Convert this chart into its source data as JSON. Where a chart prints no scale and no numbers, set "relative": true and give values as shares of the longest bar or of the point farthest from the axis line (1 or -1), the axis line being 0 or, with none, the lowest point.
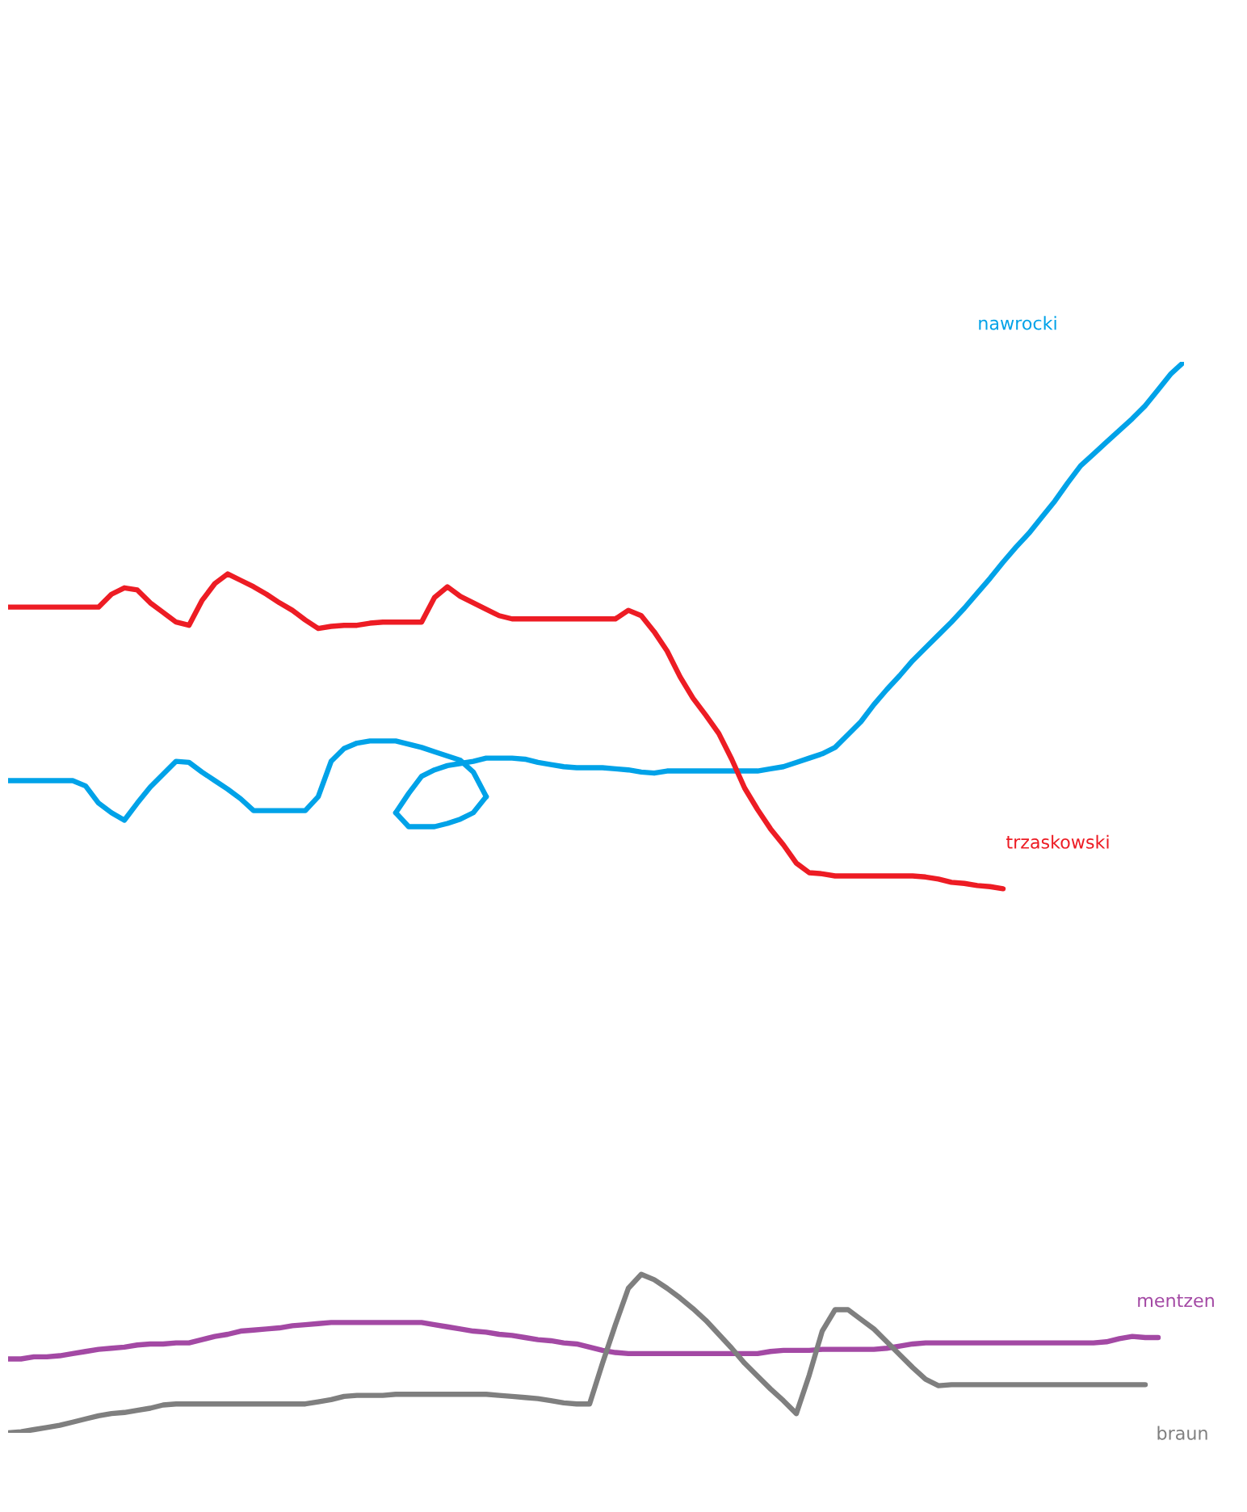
{
  "chart_data": {
    "type": "line",
    "relative": true,
    "categories": [
      null,
      null,
      null,
      null,
      null,
      null,
      null,
      null,
      null,
      null,
      null,
      null,
      null,
      null,
      null,
      null,
      null,
      null,
      null,
      null,
      null,
      null,
      null,
      null,
      null,
      null,
      null,
      null,
      null,
      null,
      null,
      null,
      null,
      null,
      null,
      null,
      null,
      null,
      null,
      null,
      null,
      null,
      null,
      null,
      null,
      null,
      null,
      null,
      null,
      null,
      null,
      null,
      null,
      null,
      null,
      null,
      null,
      null,
      null,
      null,
      null,
      null,
      null,
      null,
      null,
      null,
      null,
      null,
      null,
      null,
      null,
      null,
      null,
      null,
      null,
      null,
      null,
      null,
      null,
      null,
      null,
      null,
      null,
      null,
      null,
      null,
      null,
      null,
      null,
      null,
      null,
      null
    ],
    "series": [
      {
        "color": "#00a2e8",
        "values": [
          0.609,
          0.609,
          0.609,
          0.609,
          0.609,
          0.609,
          0.604,
          0.588,
          0.579,
          0.572,
          0.588,
          0.603,
          0.615,
          0.627,
          0.626,
          0.617,
          0.609,
          0.601,
          0.592,
          0.581,
          0.581,
          0.581,
          0.581,
          0.581,
          0.594,
          0.627,
          0.639,
          0.644,
          0.646,
          0.646,
          0.646,
          0.643,
          0.64,
          0.636,
          0.632,
          0.628,
          0.617,
          0.594,
          null,
          null,
          null,
          null,
          null,
          null,
          null,
          null,
          null,
          null,
          null,
          null,
          null,
          null,
          null,
          null,
          null,
          null,
          null,
          null,
          null,
          null,
          null,
          null,
          null,
          null,
          null,
          null,
          null,
          null,
          null,
          null,
          null,
          null,
          null,
          null,
          null,
          null,
          null,
          null,
          null,
          null,
          null,
          null,
          null,
          null,
          null,
          null,
          null,
          null,
          null,
          null,
          null,
          null
        ]
      },
      {
        "color": "#00a2e8",
        "values": [
          null,
          null,
          null,
          null,
          null,
          null,
          null,
          null,
          null,
          null,
          null,
          null,
          null,
          null,
          null,
          null,
          null,
          null,
          null,
          null,
          null,
          null,
          null,
          null,
          null,
          null,
          null,
          null,
          null,
          null,
          0.579,
          0.566,
          0.566,
          0.566,
          0.569,
          0.573,
          0.579,
          0.594,
          null,
          null,
          null,
          null,
          null,
          null,
          null,
          null,
          null,
          null,
          null,
          null,
          null,
          null,
          null,
          null,
          null,
          null,
          null,
          null,
          null,
          null,
          null,
          null,
          null,
          null,
          null,
          null,
          null,
          null,
          null,
          null,
          null,
          null,
          null,
          null,
          null,
          null,
          null,
          null,
          null,
          null,
          null,
          null,
          null,
          null,
          null,
          null,
          null,
          null,
          null,
          null,
          null,
          null
        ]
      },
      {
        "name": "nawrocki",
        "color": "#00a2e8",
        "values": [
          null,
          null,
          null,
          null,
          null,
          null,
          null,
          null,
          null,
          null,
          null,
          null,
          null,
          null,
          null,
          null,
          null,
          null,
          null,
          null,
          null,
          null,
          null,
          null,
          null,
          null,
          null,
          null,
          null,
          null,
          0.579,
          0.597,
          0.613,
          0.619,
          0.623,
          0.625,
          0.627,
          0.63,
          0.63,
          0.63,
          0.629,
          0.626,
          0.624,
          0.622,
          0.621,
          0.621,
          0.621,
          0.62,
          0.619,
          0.617,
          0.616,
          0.618,
          0.618,
          0.618,
          0.618,
          0.618,
          0.618,
          0.618,
          0.618,
          0.62,
          0.622,
          0.626,
          0.63,
          0.634,
          0.64,
          0.652,
          0.664,
          0.68,
          0.694,
          0.707,
          0.721,
          0.733,
          0.745,
          0.757,
          0.77,
          0.784,
          0.798,
          0.813,
          0.827,
          0.84,
          0.855,
          0.87,
          0.887,
          0.903,
          0.914,
          0.925,
          0.936,
          0.947,
          0.959,
          0.974,
          0.989,
          1.0
        ]
      },
      {
        "name": "trzaskowski",
        "color": "#ed1c24",
        "values": [
          0.771,
          0.771,
          0.771,
          0.771,
          0.771,
          0.771,
          0.771,
          0.771,
          0.783,
          0.789,
          0.787,
          0.775,
          0.766,
          0.757,
          0.754,
          0.777,
          0.793,
          0.802,
          0.796,
          0.79,
          0.783,
          0.775,
          0.768,
          0.759,
          0.751,
          0.753,
          0.754,
          0.754,
          0.756,
          0.757,
          0.757,
          0.757,
          0.757,
          0.78,
          0.79,
          0.781,
          0.775,
          0.769,
          0.763,
          0.76,
          0.76,
          0.76,
          0.76,
          0.76,
          0.76,
          0.76,
          0.76,
          0.76,
          0.768,
          0.763,
          0.748,
          0.73,
          0.706,
          0.686,
          0.67,
          0.653,
          0.629,
          0.602,
          0.582,
          0.564,
          0.549,
          0.532,
          0.523,
          0.522,
          0.52,
          0.52,
          0.52,
          0.52,
          0.52,
          0.52,
          0.52,
          0.519,
          0.517,
          0.514,
          0.513,
          0.511,
          0.51,
          0.508,
          null,
          null,
          null,
          null,
          null,
          null,
          null,
          null,
          null,
          null,
          null,
          null,
          null,
          null
        ]
      },
      {
        "name": "mentzen",
        "color": "#a349a4",
        "values": [
          0.069,
          0.069,
          0.071,
          0.071,
          0.072,
          0.074,
          0.076,
          0.078,
          0.079,
          0.08,
          0.082,
          0.083,
          0.083,
          0.084,
          0.084,
          0.087,
          0.09,
          0.092,
          0.095,
          0.096,
          0.097,
          0.098,
          0.1,
          0.101,
          0.102,
          0.103,
          0.103,
          0.103,
          0.103,
          0.103,
          0.103,
          0.103,
          0.103,
          0.101,
          0.099,
          0.097,
          0.095,
          0.094,
          0.092,
          0.091,
          0.089,
          0.087,
          0.086,
          0.084,
          0.083,
          0.08,
          0.077,
          0.075,
          0.074,
          0.074,
          0.074,
          0.074,
          0.074,
          0.074,
          0.074,
          0.074,
          0.074,
          0.074,
          0.074,
          0.076,
          0.077,
          0.077,
          0.077,
          0.078,
          0.078,
          0.078,
          0.078,
          0.078,
          0.079,
          0.081,
          0.083,
          0.084,
          0.084,
          0.084,
          0.084,
          0.084,
          0.084,
          0.084,
          0.084,
          0.084,
          0.084,
          0.084,
          0.084,
          0.084,
          0.084,
          0.085,
          0.088,
          0.09,
          0.089,
          0.089,
          null,
          null
        ]
      },
      {
        "name": "braun",
        "color": "#7f7f7f",
        "values": [
          0.0,
          0.001,
          0.003,
          0.005,
          0.007,
          0.01,
          0.013,
          0.016,
          0.018,
          0.019,
          0.021,
          0.023,
          0.026,
          0.027,
          0.027,
          0.027,
          0.027,
          0.027,
          0.027,
          0.027,
          0.027,
          0.027,
          0.027,
          0.027,
          0.029,
          0.031,
          0.034,
          0.035,
          0.035,
          0.035,
          0.036,
          0.036,
          0.036,
          0.036,
          0.036,
          0.036,
          0.036,
          0.036,
          0.035,
          0.034,
          0.033,
          0.032,
          0.03,
          0.028,
          0.027,
          0.027,
          0.065,
          0.101,
          0.135,
          0.148,
          0.143,
          0.135,
          0.126,
          0.116,
          0.105,
          0.092,
          0.079,
          0.065,
          0.053,
          0.041,
          0.03,
          0.018,
          0.054,
          0.095,
          0.115,
          0.115,
          0.106,
          0.097,
          0.085,
          0.073,
          0.061,
          0.05,
          0.044,
          0.045,
          0.045,
          0.045,
          0.045,
          0.045,
          0.045,
          0.045,
          0.045,
          0.045,
          0.045,
          0.045,
          0.045,
          0.045,
          0.045,
          0.045,
          0.045,
          null,
          null,
          null
        ]
      }
    ]
  }
}
